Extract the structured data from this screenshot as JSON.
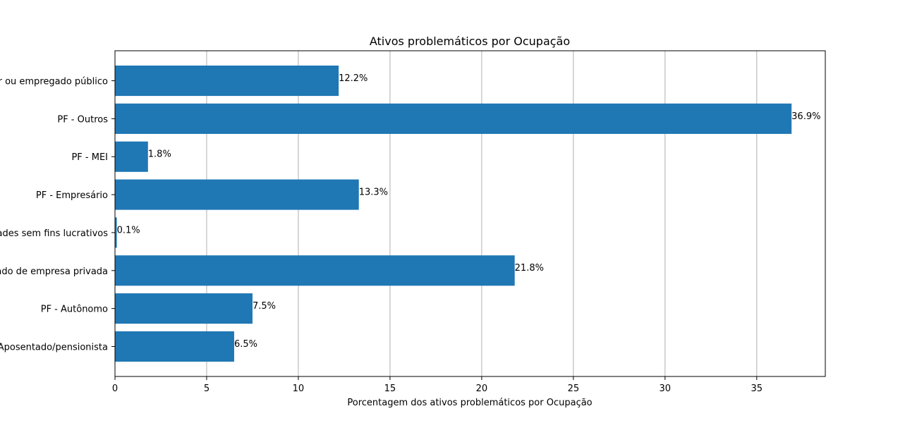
{
  "chart_data": {
    "type": "bar",
    "orientation": "horizontal",
    "title": "Ativos problemáticos por Ocupação",
    "xlabel": "Porcentagem dos ativos problemáticos por Ocupação",
    "ylabel": "",
    "categories": [
      "PF - Servidor ou empregado público",
      "PF - Outros",
      "PF - MEI",
      "PF - Empresário",
      "PF - Entidades sem fins lucrativos",
      "PF - Empregado de empresa privada",
      "PF - Autônomo",
      "PF - Aposentado/pensionista"
    ],
    "values": [
      12.2,
      36.9,
      1.8,
      13.3,
      0.1,
      21.8,
      7.5,
      6.5
    ],
    "data_labels": [
      "12.2%",
      "36.9%",
      "1.8%",
      "13.3%",
      "0.1%",
      "21.8%",
      "7.5%",
      "6.5%"
    ],
    "xlim": [
      0,
      38.74
    ],
    "xticks": [
      0,
      5,
      10,
      15,
      20,
      25,
      30,
      35
    ],
    "grid": "x-axis vertical lines",
    "bar_color": "#1f77b4",
    "grid_color": "#b0b0b0"
  }
}
